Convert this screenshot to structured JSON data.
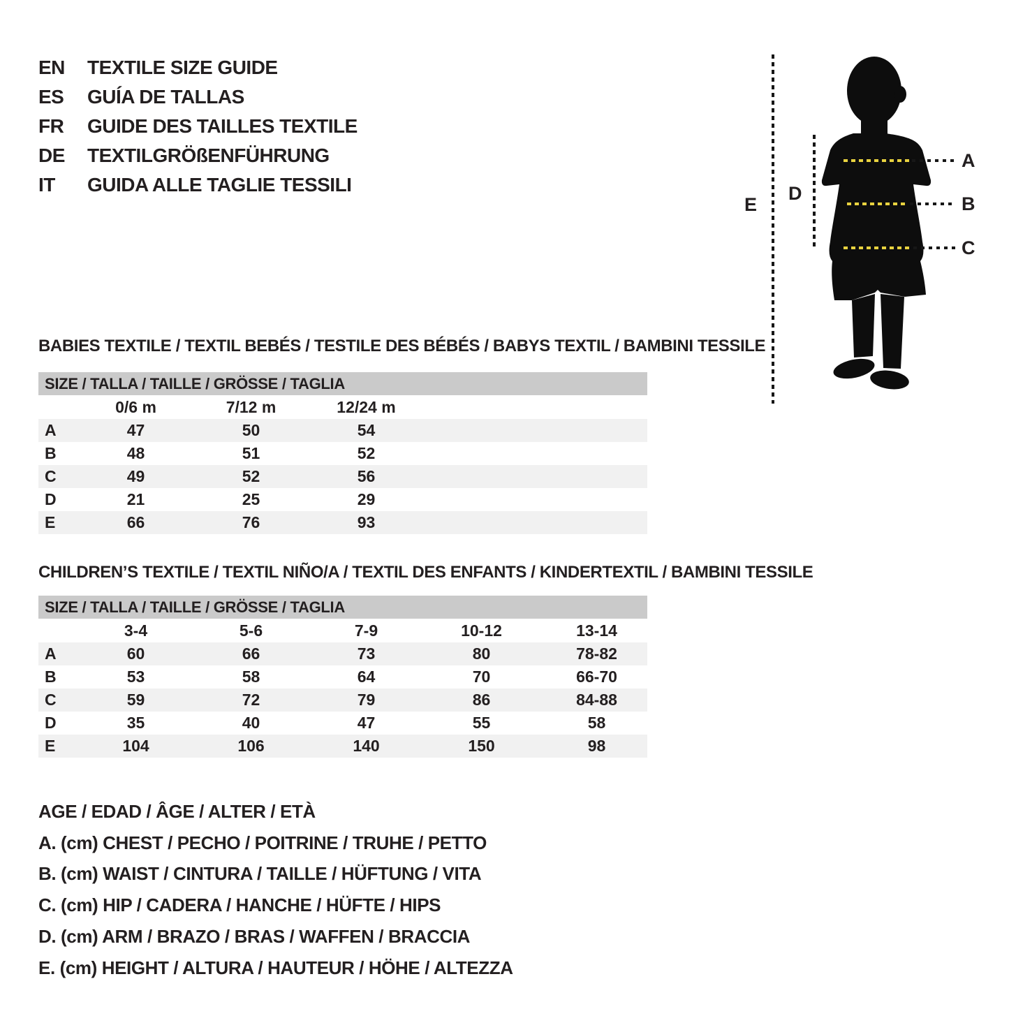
{
  "header": {
    "languages": [
      {
        "code": "EN",
        "title": "TEXTILE SIZE GUIDE"
      },
      {
        "code": "ES",
        "title": "GUÍA DE TALLAS"
      },
      {
        "code": "FR",
        "title": "GUIDE DES TAILLES TEXTILE"
      },
      {
        "code": "DE",
        "title": "TEXTILGRÖßENFÜHRUNG"
      },
      {
        "code": "IT",
        "title": "GUIDA ALLE TAGLIE TESSILI"
      }
    ]
  },
  "figure": {
    "labels": {
      "a": "A",
      "b": "B",
      "c": "C",
      "d": "D",
      "e": "E"
    }
  },
  "babies_table": {
    "section_title": "BABIES TEXTILE / TEXTIL BEBÉS / TESTILE DES BÉBÉS / BABYS TEXTIL / BAMBINI TESSILE",
    "header": "SIZE / TALLA / TAILLE / GRÖSSE / TAGLIA",
    "columns": [
      "0/6 m",
      "7/12 m",
      "12/24 m"
    ],
    "rows": [
      {
        "label": "A",
        "values": [
          "47",
          "50",
          "54"
        ]
      },
      {
        "label": "B",
        "values": [
          "48",
          "51",
          "52"
        ]
      },
      {
        "label": "C",
        "values": [
          "49",
          "52",
          "56"
        ]
      },
      {
        "label": "D",
        "values": [
          "21",
          "25",
          "29"
        ]
      },
      {
        "label": "E",
        "values": [
          "66",
          "76",
          "93"
        ]
      }
    ]
  },
  "children_table": {
    "section_title": "CHILDREN’S TEXTILE / TEXTIL NIÑO/A / TEXTIL DES ENFANTS / KINDERTEXTIL / BAMBINI TESSILE",
    "header": "SIZE / TALLA / TAILLE / GRÖSSE / TAGLIA",
    "columns": [
      "3-4",
      "5-6",
      "7-9",
      "10-12",
      "13-14"
    ],
    "rows": [
      {
        "label": "A",
        "values": [
          "60",
          "66",
          "73",
          "80",
          "78-82"
        ]
      },
      {
        "label": "B",
        "values": [
          "53",
          "58",
          "64",
          "70",
          "66-70"
        ]
      },
      {
        "label": "C",
        "values": [
          "59",
          "72",
          "79",
          "86",
          "84-88"
        ]
      },
      {
        "label": "D",
        "values": [
          "35",
          "40",
          "47",
          "55",
          "58"
        ]
      },
      {
        "label": "E",
        "values": [
          "104",
          "106",
          "140",
          "150",
          "98"
        ]
      }
    ]
  },
  "legend": {
    "lines": [
      "AGE / EDAD / ÂGE / ALTER / ETÀ",
      "A. (cm) CHEST / PECHO / POITRINE / TRUHE / PETTO",
      "B. (cm) WAIST / CINTURA / TAILLE / HÜFTUNG / VITA",
      "C. (cm) HIP / CADERA / HANCHE / HÜFTE / HIPS",
      "D. (cm) ARM / BRAZO / BRAS / WAFFEN / BRACCIA",
      "E. (cm) HEIGHT / ALTURA / HAUTEUR / HÖHE / ALTEZZA"
    ]
  },
  "colors": {
    "ink": "#231f20",
    "table_header_bg": "#cacaca",
    "row_alt_bg": "#f1f1f1",
    "accent_yellow": "#e8d23f",
    "silhouette": "#0d0d0d"
  }
}
